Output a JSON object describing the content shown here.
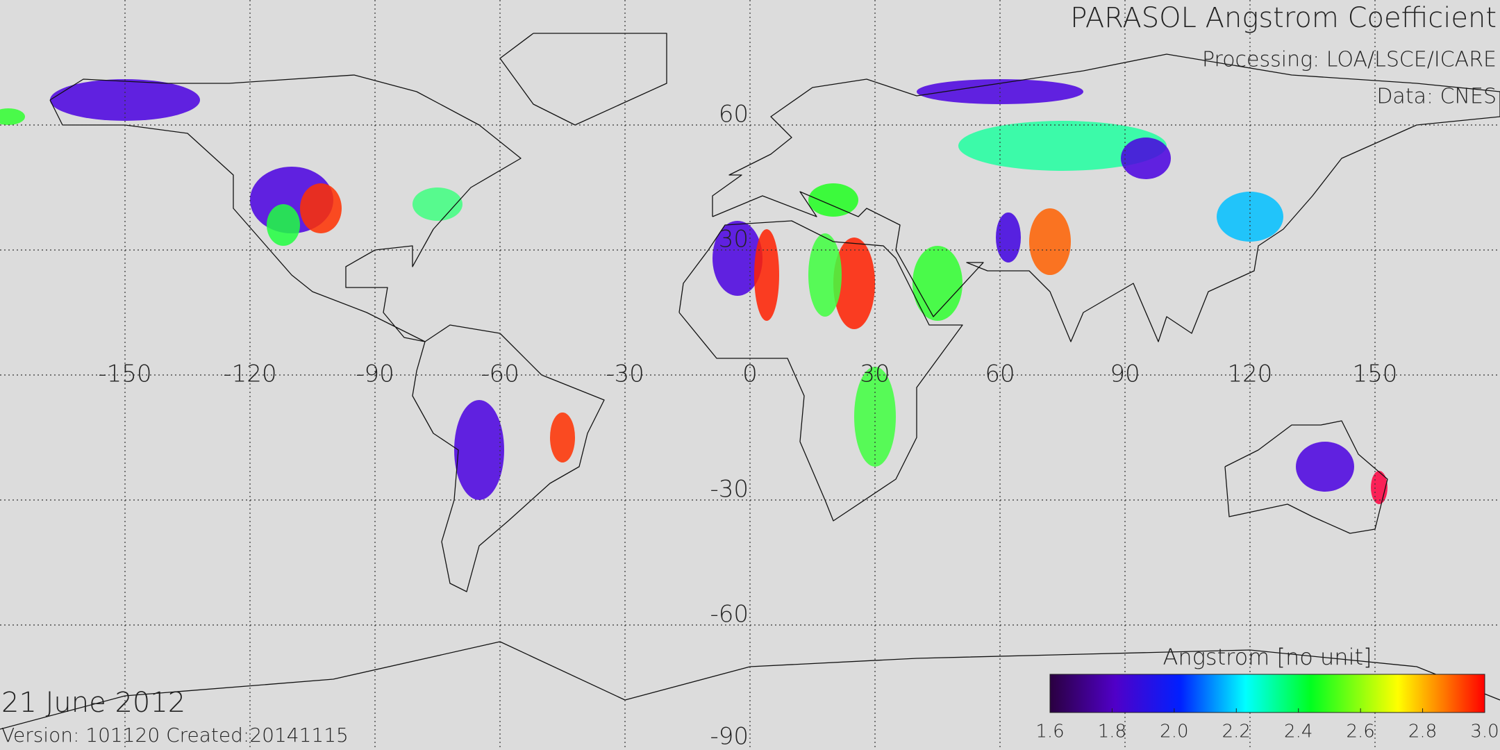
{
  "title": "PARASOL Angstrom Coefficient",
  "processing": "Processing: LOA/LSCE/ICARE",
  "data_source": "Data: CNES",
  "date": "21 June 2012",
  "version_line": "Version: 101120   Created:20141115",
  "lon_labels": [
    -150,
    -120,
    -90,
    -60,
    -30,
    0,
    30,
    60,
    90,
    120,
    150
  ],
  "lat_labels": [
    60,
    30,
    -30,
    -60,
    -90
  ],
  "colorbar": {
    "label": "Angstrom [no unit]",
    "range": [
      1.6,
      3.0
    ],
    "ticks": [
      1.6,
      1.8,
      {
        "value": 2,
        "label": "2.0"
      },
      2.2,
      2.4,
      2.6,
      2.8,
      {
        "value": 3,
        "label": "3.0"
      }
    ]
  }
}
